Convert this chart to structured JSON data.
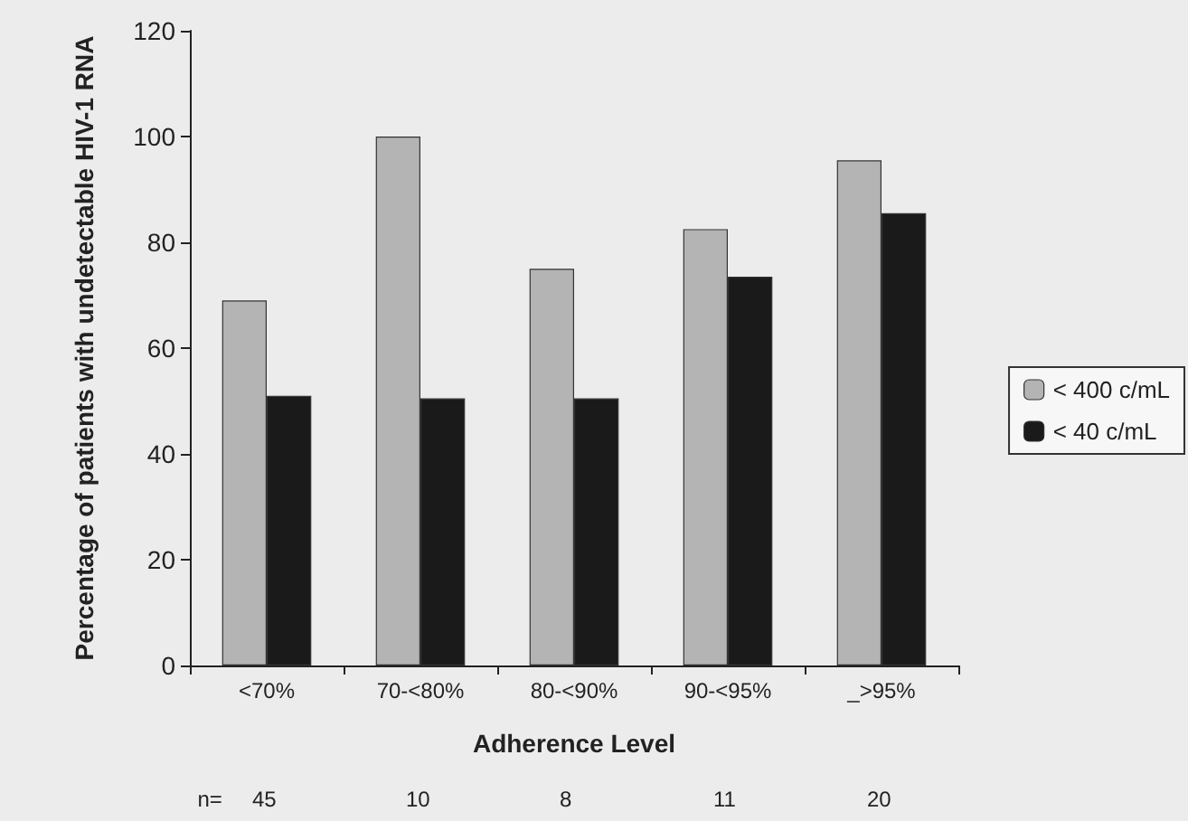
{
  "chart_data": {
    "type": "bar",
    "xlabel": "Adherence Level",
    "ylabel": "Percentage of patients with undetectable HIV-1 RNA",
    "categories": [
      "<70%",
      "70-<80%",
      "80-<90%",
      "90-<95%",
      "_>95%"
    ],
    "series": [
      {
        "name": "< 400 c/mL",
        "color": "#b4b4b4",
        "values": [
          69,
          100,
          75,
          82.5,
          95.5
        ]
      },
      {
        "name": "< 40 c/mL",
        "color": "#1a1a1a",
        "values": [
          51,
          50.5,
          50.5,
          73.5,
          85.5
        ]
      }
    ],
    "ylim": [
      0,
      120
    ],
    "yticks": [
      0,
      20,
      40,
      60,
      80,
      100,
      120
    ],
    "grid": false,
    "legend": "right",
    "annotations": [
      "n=",
      "45",
      "10",
      "8",
      "11",
      "20"
    ]
  }
}
